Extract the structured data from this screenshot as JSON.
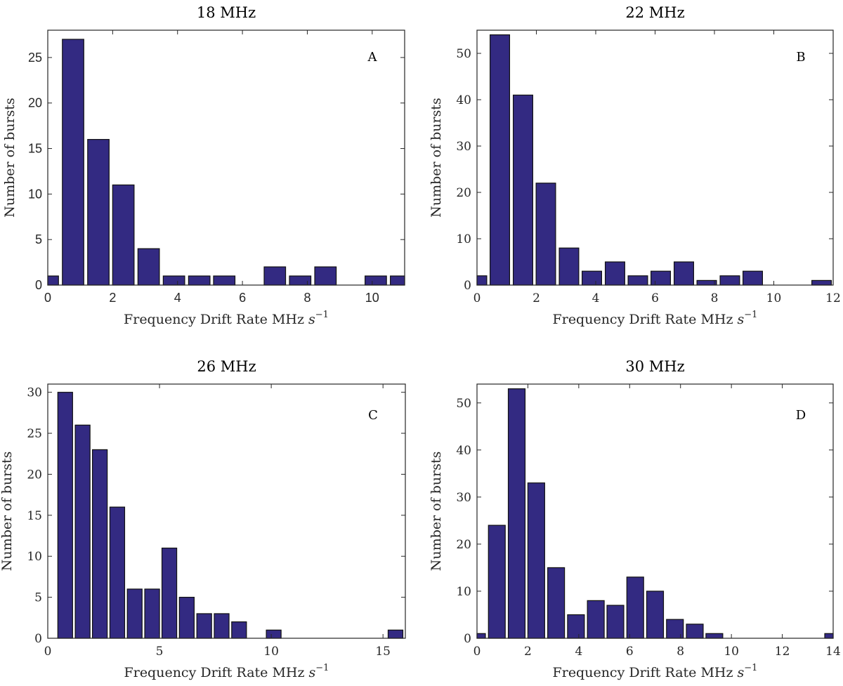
{
  "chart_data": [
    {
      "type": "bar",
      "panel": "A",
      "title": "18 MHz",
      "xlabel": "Frequency Drift Rate MHz s^-1",
      "xlabel_main": "Frequency Drift Rate MHz ",
      "xlabel_italic": "s",
      "xlabel_sup": "−1",
      "ylabel": "Number of bursts",
      "xlim": [
        0,
        11
      ],
      "ylim": [
        0,
        28
      ],
      "xticks": [
        0,
        2,
        4,
        6,
        8,
        10
      ],
      "yticks": [
        0,
        5,
        10,
        15,
        20,
        25
      ],
      "bin_width": 0.778,
      "x": [
        0.0,
        0.78,
        1.56,
        2.33,
        3.11,
        3.89,
        4.67,
        5.44,
        6.22,
        7.0,
        7.78,
        8.56,
        9.33,
        10.11,
        10.89
      ],
      "values": [
        1,
        27,
        16,
        11,
        4,
        1,
        1,
        1,
        0,
        2,
        1,
        2,
        0,
        1,
        1
      ],
      "tick_font": "sans",
      "color": "#332a82"
    },
    {
      "type": "bar",
      "panel": "B",
      "title": "22 MHz",
      "xlabel": "Frequency Drift Rate MHz s^-1",
      "xlabel_main": "Frequency Drift Rate MHz ",
      "xlabel_italic": "s",
      "xlabel_sup": "−1",
      "ylabel": "Number of bursts",
      "xlim": [
        0,
        12
      ],
      "ylim": [
        0,
        55
      ],
      "xticks": [
        0,
        2,
        4,
        6,
        8,
        10,
        12
      ],
      "yticks": [
        0,
        10,
        20,
        30,
        40,
        50
      ],
      "bin_width": 0.774,
      "x": [
        0.0,
        0.77,
        1.55,
        2.32,
        3.1,
        3.87,
        4.65,
        5.42,
        6.19,
        6.97,
        7.74,
        8.52,
        9.29,
        10.06,
        10.84,
        11.61
      ],
      "values": [
        2,
        54,
        41,
        22,
        8,
        3,
        5,
        2,
        3,
        5,
        1,
        2,
        3,
        0,
        0,
        1
      ],
      "tick_font": "serif",
      "color": "#332a82"
    },
    {
      "type": "bar",
      "panel": "C",
      "title": "26 MHz",
      "xlabel": "Frequency Drift Rate MHz s^-1",
      "xlabel_main": "Frequency Drift Rate MHz ",
      "xlabel_italic": "s",
      "xlabel_sup": "−1",
      "ylabel": "Number of bursts",
      "xlim": [
        0,
        16
      ],
      "ylim": [
        0,
        31
      ],
      "xticks": [
        0,
        5,
        10,
        15
      ],
      "yticks": [
        0,
        5,
        10,
        15,
        20,
        25,
        30
      ],
      "bin_width": 0.778,
      "x": [
        0.78,
        1.56,
        2.33,
        3.11,
        3.89,
        4.67,
        5.44,
        6.22,
        7.0,
        7.78,
        8.56,
        9.33,
        10.11,
        10.89,
        11.67,
        12.44,
        13.22,
        14.0,
        14.78,
        15.56
      ],
      "values": [
        30,
        26,
        23,
        16,
        6,
        6,
        11,
        5,
        3,
        3,
        2,
        0,
        1,
        0,
        0,
        0,
        0,
        0,
        0,
        1
      ],
      "tick_font": "serif",
      "color": "#332a82"
    },
    {
      "type": "bar",
      "panel": "D",
      "title": "30 MHz",
      "xlabel": "Frequency Drift Rate MHz s^-1",
      "xlabel_main": "Frequency Drift Rate MHz ",
      "xlabel_italic": "s",
      "xlabel_sup": "−1",
      "ylabel": "Number of bursts",
      "xlim": [
        0,
        14
      ],
      "ylim": [
        0,
        54
      ],
      "xticks": [
        0,
        2,
        4,
        6,
        8,
        10,
        12,
        14
      ],
      "yticks": [
        0,
        10,
        20,
        30,
        40,
        50
      ],
      "bin_width": 0.778,
      "x": [
        0.0,
        0.78,
        1.56,
        2.33,
        3.11,
        3.89,
        4.67,
        5.44,
        6.22,
        7.0,
        7.78,
        8.56,
        9.33,
        10.11,
        10.89,
        11.67,
        12.44,
        13.22,
        14.0
      ],
      "values": [
        1,
        24,
        53,
        33,
        15,
        5,
        8,
        7,
        13,
        10,
        4,
        3,
        1,
        0,
        0,
        0,
        0,
        0,
        1
      ],
      "tick_font": "serif",
      "color": "#332a82"
    }
  ]
}
